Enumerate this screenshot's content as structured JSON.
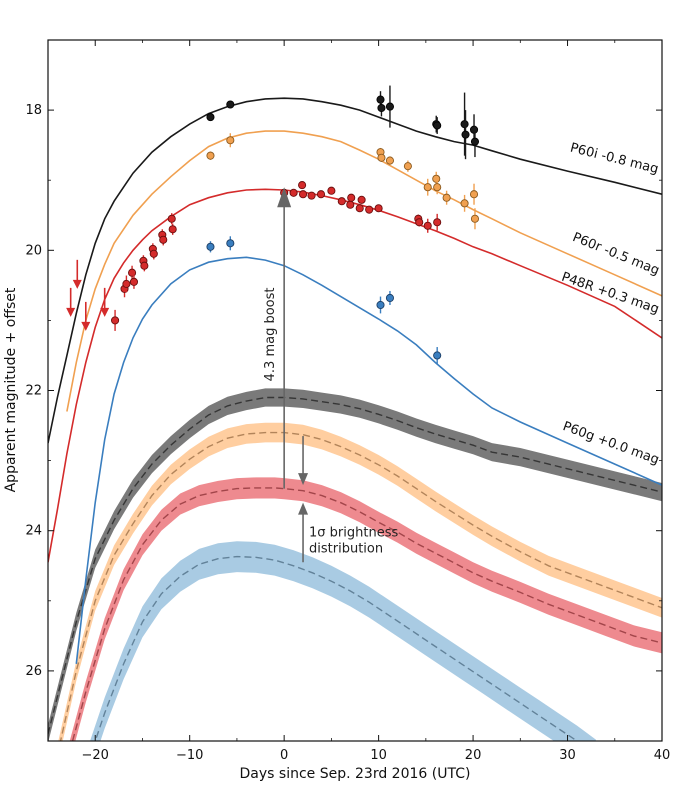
{
  "chart_data": {
    "type": "scatter",
    "xlabel": "Days since Sep. 23rd 2016 (UTC)",
    "ylabel": "Apparent magnitude + offset",
    "xlim": [
      -25,
      40
    ],
    "ylim": [
      27,
      17
    ],
    "x_ticks": [
      -20,
      -10,
      0,
      10,
      20,
      30,
      40
    ],
    "y_ticks": [
      18,
      20,
      22,
      24,
      26
    ],
    "x_tick_labels": [
      "−20",
      "−10",
      "0",
      "10",
      "20",
      "30",
      "40"
    ],
    "y_tick_labels": [
      "18",
      "20",
      "22",
      "24",
      "26"
    ],
    "series": [
      {
        "name": "P60i -0.8 mag",
        "color": "#1a1a1a",
        "curve_x": [
          -25,
          -24,
          -23,
          -22,
          -21,
          -20,
          -19,
          -18,
          -16,
          -14,
          -12,
          -10,
          -8,
          -6,
          -4,
          -2,
          0,
          2,
          4,
          6,
          8,
          10,
          12,
          14,
          16,
          18,
          20,
          22,
          25,
          30,
          35,
          40
        ],
        "curve_y": [
          22.75,
          22.1,
          21.5,
          20.9,
          20.35,
          19.9,
          19.55,
          19.3,
          18.9,
          18.6,
          18.38,
          18.2,
          18.05,
          17.95,
          17.88,
          17.84,
          17.83,
          17.84,
          17.88,
          17.93,
          18.0,
          18.1,
          18.2,
          18.3,
          18.38,
          18.45,
          18.5,
          18.58,
          18.7,
          18.87,
          19.03,
          19.2
        ],
        "points": [
          {
            "x": -7.8,
            "y": 18.1,
            "err": 0.04
          },
          {
            "x": -5.7,
            "y": 17.92,
            "err": 0.04
          },
          {
            "x": 10.2,
            "y": 17.85,
            "err": 0.12
          },
          {
            "x": 10.3,
            "y": 17.97,
            "err": 0.12
          },
          {
            "x": 11.2,
            "y": 17.95,
            "err": 0.3
          },
          {
            "x": 16.1,
            "y": 18.2,
            "err": 0.12
          },
          {
            "x": 16.2,
            "y": 18.22,
            "err": 0.12
          },
          {
            "x": 19.1,
            "y": 18.2,
            "err": 0.45
          },
          {
            "x": 19.2,
            "y": 18.35,
            "err": 0.35
          },
          {
            "x": 20.1,
            "y": 18.28,
            "err": 0.22
          },
          {
            "x": 20.2,
            "y": 18.45,
            "err": 0.22
          }
        ]
      },
      {
        "name": "P60r -0.5 mag",
        "color": "#f0a050",
        "curve_x": [
          -23,
          -22,
          -21,
          -20,
          -19,
          -18,
          -16,
          -14,
          -12,
          -10,
          -8,
          -6,
          -4,
          -2,
          0,
          2,
          4,
          6,
          8,
          10,
          12,
          14,
          16,
          18,
          20,
          22,
          25,
          30,
          35,
          40
        ],
        "curve_y": [
          22.3,
          21.6,
          21.0,
          20.55,
          20.2,
          19.9,
          19.5,
          19.2,
          18.95,
          18.72,
          18.52,
          18.4,
          18.33,
          18.3,
          18.3,
          18.33,
          18.38,
          18.45,
          18.57,
          18.7,
          18.85,
          19.0,
          19.15,
          19.28,
          19.42,
          19.55,
          19.75,
          20.05,
          20.35,
          20.65
        ],
        "points": [
          {
            "x": -7.8,
            "y": 18.65,
            "err": 0.06
          },
          {
            "x": -5.7,
            "y": 18.43,
            "err": 0.1
          },
          {
            "x": 10.2,
            "y": 18.6,
            "err": 0.06
          },
          {
            "x": 10.3,
            "y": 18.68,
            "err": 0.06
          },
          {
            "x": 11.2,
            "y": 18.72,
            "err": 0.06
          },
          {
            "x": 13.1,
            "y": 18.8,
            "err": 0.08
          },
          {
            "x": 15.2,
            "y": 19.1,
            "err": 0.12
          },
          {
            "x": 16.1,
            "y": 18.98,
            "err": 0.1
          },
          {
            "x": 16.2,
            "y": 19.1,
            "err": 0.1
          },
          {
            "x": 17.2,
            "y": 19.25,
            "err": 0.1
          },
          {
            "x": 19.1,
            "y": 19.33,
            "err": 0.12
          },
          {
            "x": 20.1,
            "y": 19.2,
            "err": 0.15
          },
          {
            "x": 20.2,
            "y": 19.55,
            "err": 0.15
          }
        ]
      },
      {
        "name": "P48R +0.3 mag",
        "color": "#d42b2b",
        "curve_x": [
          -25,
          -24,
          -23,
          -22,
          -21,
          -20,
          -19,
          -18,
          -17,
          -16,
          -15,
          -14,
          -12,
          -10,
          -8,
          -6,
          -4,
          -2,
          0,
          2,
          4,
          6,
          8,
          10,
          12,
          14,
          16,
          18,
          20,
          22,
          25,
          30,
          35,
          40
        ],
        "curve_y": [
          24.45,
          23.7,
          22.9,
          22.2,
          21.6,
          21.1,
          20.7,
          20.4,
          20.18,
          20.0,
          19.85,
          19.72,
          19.52,
          19.35,
          19.25,
          19.18,
          19.14,
          19.13,
          19.14,
          19.17,
          19.22,
          19.28,
          19.35,
          19.43,
          19.52,
          19.62,
          19.72,
          19.83,
          19.95,
          20.05,
          20.22,
          20.5,
          20.8,
          21.25
        ],
        "points": [
          {
            "x": -17.9,
            "y": 21.0,
            "err": 0.15
          },
          {
            "x": -16.9,
            "y": 20.55,
            "err": 0.12
          },
          {
            "x": -16.7,
            "y": 20.48,
            "err": 0.12
          },
          {
            "x": -16.1,
            "y": 20.32,
            "err": 0.1
          },
          {
            "x": -15.9,
            "y": 20.45,
            "err": 0.1
          },
          {
            "x": -14.9,
            "y": 20.15,
            "err": 0.08
          },
          {
            "x": -14.8,
            "y": 20.22,
            "err": 0.08
          },
          {
            "x": -13.9,
            "y": 19.98,
            "err": 0.08
          },
          {
            "x": -13.8,
            "y": 20.05,
            "err": 0.08
          },
          {
            "x": -12.9,
            "y": 19.78,
            "err": 0.08
          },
          {
            "x": -12.8,
            "y": 19.85,
            "err": 0.08
          },
          {
            "x": -11.9,
            "y": 19.55,
            "err": 0.08
          },
          {
            "x": -11.8,
            "y": 19.7,
            "err": 0.08
          },
          {
            "x": 0.0,
            "y": 19.18,
            "err": 0.05
          },
          {
            "x": 1.0,
            "y": 19.18,
            "err": 0.05
          },
          {
            "x": 1.9,
            "y": 19.07,
            "err": 0.05
          },
          {
            "x": 2.0,
            "y": 19.2,
            "err": 0.05
          },
          {
            "x": 2.9,
            "y": 19.22,
            "err": 0.05
          },
          {
            "x": 3.9,
            "y": 19.2,
            "err": 0.05
          },
          {
            "x": 5.0,
            "y": 19.15,
            "err": 0.05
          },
          {
            "x": 6.1,
            "y": 19.3,
            "err": 0.05
          },
          {
            "x": 7.0,
            "y": 19.35,
            "err": 0.05
          },
          {
            "x": 7.1,
            "y": 19.25,
            "err": 0.05
          },
          {
            "x": 8.0,
            "y": 19.4,
            "err": 0.05
          },
          {
            "x": 8.2,
            "y": 19.28,
            "err": 0.05
          },
          {
            "x": 9.0,
            "y": 19.42,
            "err": 0.05
          },
          {
            "x": 10.0,
            "y": 19.4,
            "err": 0.05
          },
          {
            "x": 14.2,
            "y": 19.55,
            "err": 0.06
          },
          {
            "x": 14.3,
            "y": 19.6,
            "err": 0.06
          },
          {
            "x": 15.2,
            "y": 19.65,
            "err": 0.1
          },
          {
            "x": 16.2,
            "y": 19.6,
            "err": 0.12
          }
        ],
        "upper_limits": [
          {
            "x": -22.6,
            "y": 20.85
          },
          {
            "x": -21.9,
            "y": 20.45
          },
          {
            "x": -21.0,
            "y": 21.05
          },
          {
            "x": -19.0,
            "y": 20.85
          }
        ]
      },
      {
        "name": "P60g +0.0 mag",
        "color": "#3a7ebf",
        "curve_x": [
          -22,
          -21,
          -20,
          -19,
          -18,
          -17,
          -16,
          -15,
          -14,
          -12,
          -10,
          -8,
          -6,
          -4,
          -2,
          0,
          2,
          4,
          6,
          8,
          10,
          12,
          14,
          16,
          18,
          20,
          22,
          25,
          30,
          35,
          40
        ],
        "curve_y": [
          25.9,
          24.7,
          23.6,
          22.7,
          22.05,
          21.6,
          21.25,
          20.98,
          20.78,
          20.48,
          20.28,
          20.17,
          20.12,
          20.1,
          20.14,
          20.22,
          20.35,
          20.5,
          20.66,
          20.82,
          20.98,
          21.15,
          21.35,
          21.6,
          21.83,
          22.05,
          22.25,
          22.45,
          22.75,
          23.05,
          23.35
        ],
        "points": [
          {
            "x": -7.8,
            "y": 19.95,
            "err": 0.08
          },
          {
            "x": -5.7,
            "y": 19.9,
            "err": 0.1
          },
          {
            "x": 10.2,
            "y": 20.78,
            "err": 0.12
          },
          {
            "x": 11.2,
            "y": 20.68,
            "err": 0.1
          },
          {
            "x": 16.2,
            "y": 21.5,
            "err": 0.12
          }
        ]
      }
    ],
    "bands": [
      {
        "color": "#4d4d4d",
        "x": [
          -25,
          -22,
          -20,
          -18,
          -16,
          -14,
          -12,
          -10,
          -8,
          -6,
          -4,
          -2,
          0,
          2,
          4,
          6,
          8,
          10,
          12,
          14,
          16,
          18,
          20,
          22,
          25,
          28,
          31,
          34,
          37,
          40
        ],
        "mid": [
          26.9,
          25.3,
          24.4,
          23.85,
          23.4,
          23.05,
          22.78,
          22.55,
          22.35,
          22.22,
          22.15,
          22.1,
          22.1,
          22.12,
          22.16,
          22.2,
          22.26,
          22.34,
          22.43,
          22.53,
          22.62,
          22.7,
          22.78,
          22.88,
          22.95,
          23.05,
          23.15,
          23.25,
          23.35,
          23.45
        ],
        "half_width": 0.13
      },
      {
        "color": "#ffbd80",
        "x": [
          -24,
          -22,
          -20,
          -18,
          -16,
          -14,
          -12,
          -10,
          -8,
          -6,
          -4,
          -2,
          0,
          2,
          4,
          6,
          8,
          10,
          12,
          14,
          16,
          18,
          20,
          22,
          25,
          28,
          31,
          34,
          37,
          40
        ],
        "mid": [
          27.2,
          26.0,
          25.0,
          24.35,
          23.9,
          23.5,
          23.2,
          22.98,
          22.8,
          22.68,
          22.62,
          22.6,
          22.6,
          22.63,
          22.7,
          22.8,
          22.92,
          23.06,
          23.22,
          23.4,
          23.58,
          23.75,
          23.92,
          24.08,
          24.3,
          24.5,
          24.65,
          24.8,
          24.95,
          25.1
        ],
        "half_width": 0.14
      },
      {
        "color": "#e8636a",
        "x": [
          -23,
          -21,
          -19,
          -17,
          -15,
          -13,
          -11,
          -9,
          -7,
          -5,
          -3,
          -1,
          0,
          2,
          4,
          6,
          8,
          10,
          12,
          14,
          16,
          18,
          20,
          22,
          25,
          28,
          31,
          34,
          37,
          40
        ],
        "mid": [
          27.3,
          26.3,
          25.4,
          24.7,
          24.2,
          23.85,
          23.62,
          23.5,
          23.44,
          23.4,
          23.39,
          23.39,
          23.4,
          23.43,
          23.5,
          23.6,
          23.73,
          23.88,
          24.02,
          24.18,
          24.32,
          24.46,
          24.6,
          24.72,
          24.88,
          25.05,
          25.2,
          25.35,
          25.5,
          25.6
        ],
        "half_width": 0.15
      },
      {
        "color": "#8cb9da",
        "x": [
          -21,
          -19,
          -17,
          -15,
          -13,
          -11,
          -9,
          -7,
          -5,
          -3,
          -1,
          1,
          3,
          5,
          7,
          9,
          11,
          13,
          15,
          17,
          19,
          21,
          23,
          25,
          27,
          29,
          31,
          33
        ],
        "mid": [
          27.4,
          26.6,
          25.9,
          25.3,
          24.9,
          24.65,
          24.48,
          24.4,
          24.37,
          24.38,
          24.42,
          24.5,
          24.6,
          24.72,
          24.86,
          25.02,
          25.2,
          25.38,
          25.56,
          25.74,
          25.92,
          26.1,
          26.28,
          26.46,
          26.64,
          26.82,
          27.0,
          27.2
        ],
        "half_width": 0.22
      }
    ],
    "labels": [
      {
        "text": "P60i -0.8 mag",
        "x": 39.5,
        "y": 18.9,
        "angle": 14
      },
      {
        "text": "P60r -0.5 mag",
        "x": 39.5,
        "y": 20.35,
        "angle": 22
      },
      {
        "text": "P48R +0.3 mag",
        "x": 39.5,
        "y": 20.9,
        "angle": 19
      },
      {
        "text": "P60g +0.0 mag",
        "x": 39.5,
        "y": 23.05,
        "angle": 20
      }
    ],
    "annotations": {
      "boost_text": "4.3 mag boost",
      "boost_arrow": {
        "x": 0,
        "y_from": 23.4,
        "y_to": 19.1
      },
      "sigma_text_1": "1σ brightness",
      "sigma_text_2": "distribution",
      "sigma_arrow_down": {
        "x": 2,
        "y_from": 22.65,
        "y_to": 23.35
      },
      "sigma_arrow_up": {
        "x": 2,
        "y_from": 24.45,
        "y_to": 23.6
      }
    }
  }
}
